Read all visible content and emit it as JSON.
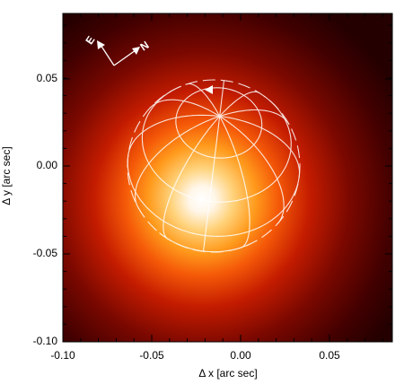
{
  "axes": {
    "x_label": "Δ x [arc sec]",
    "y_label": "Δ y [arc sec]",
    "x_ticks": [
      "-0.10",
      "-0.05",
      "0.00",
      "0.05"
    ],
    "y_ticks": [
      "-0.10",
      "-0.05",
      "0.00",
      "0.05"
    ],
    "x_range": [
      -0.1,
      0.085
    ],
    "y_range": [
      -0.1,
      0.088
    ]
  },
  "compass": {
    "east_label": "E",
    "north_label": "N"
  },
  "colors": {
    "background": "#250000",
    "glow_mid": "#c01a00",
    "glow_orange": "#ff8a10",
    "core": "#ffffff",
    "grid_lines": "#ffffff"
  }
}
